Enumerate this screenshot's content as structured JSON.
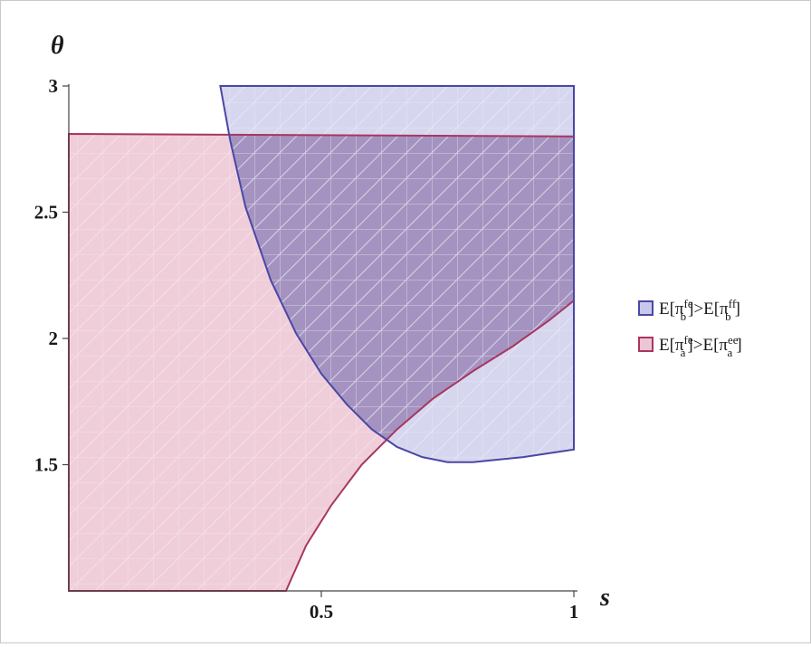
{
  "chart_data": {
    "type": "area",
    "xlabel": "s",
    "ylabel": "θ",
    "xlim": [
      0,
      1
    ],
    "ylim": [
      1,
      3
    ],
    "x_ticks": [
      {
        "value": 0.5,
        "label": "0.5"
      },
      {
        "value": 1,
        "label": "1"
      }
    ],
    "y_ticks": [
      {
        "value": 1.5,
        "label": "1.5"
      },
      {
        "value": 2,
        "label": "2"
      },
      {
        "value": 2.5,
        "label": "2.5"
      },
      {
        "value": 3,
        "label": "3"
      }
    ],
    "grid": false,
    "legend_position": "right",
    "series": [
      {
        "name": "E[π_b^fe]>E[π_b^ff]",
        "legend": {
          "base1": "E[π",
          "sub1": "b",
          "sup1": "fe",
          "mid": "]>E[π",
          "sub2": "b",
          "sup2": "ff",
          "end": "]"
        },
        "color": "#4a47a6",
        "fill": "#c8c9ea",
        "region": {
          "lower_boundary": [
            [
              0.3,
              3.0
            ],
            [
              0.32,
              2.78
            ],
            [
              0.35,
              2.52
            ],
            [
              0.4,
              2.23
            ],
            [
              0.45,
              2.02
            ],
            [
              0.5,
              1.86
            ],
            [
              0.55,
              1.74
            ],
            [
              0.6,
              1.64
            ],
            [
              0.65,
              1.57
            ],
            [
              0.7,
              1.53
            ],
            [
              0.75,
              1.51
            ],
            [
              0.8,
              1.51
            ],
            [
              0.9,
              1.53
            ],
            [
              1.0,
              1.56
            ]
          ],
          "upper_boundary_y": 3.0,
          "x_range": [
            0.3,
            1.0
          ]
        }
      },
      {
        "name": "E[π_a^fe]>E[π_a^ee]",
        "legend": {
          "base1": "E[π",
          "sub1": "a",
          "sup1": "fe",
          "mid": "]>E[π",
          "sub2": "a",
          "sup2": "ee",
          "end": "]"
        },
        "color": "#a8365f",
        "fill": "#ecc6d4",
        "region": {
          "top_boundary": [
            [
              0.0,
              2.81
            ],
            [
              1.0,
              2.8
            ]
          ],
          "right_boundary": [
            [
              0.43,
              1.0
            ],
            [
              0.47,
              1.18
            ],
            [
              0.52,
              1.34
            ],
            [
              0.58,
              1.5
            ],
            [
              0.65,
              1.64
            ],
            [
              0.72,
              1.76
            ],
            [
              0.8,
              1.87
            ],
            [
              0.88,
              1.97
            ],
            [
              0.95,
              2.07
            ],
            [
              1.0,
              2.15
            ]
          ],
          "x_range": [
            0.0,
            1.0
          ]
        }
      }
    ]
  }
}
